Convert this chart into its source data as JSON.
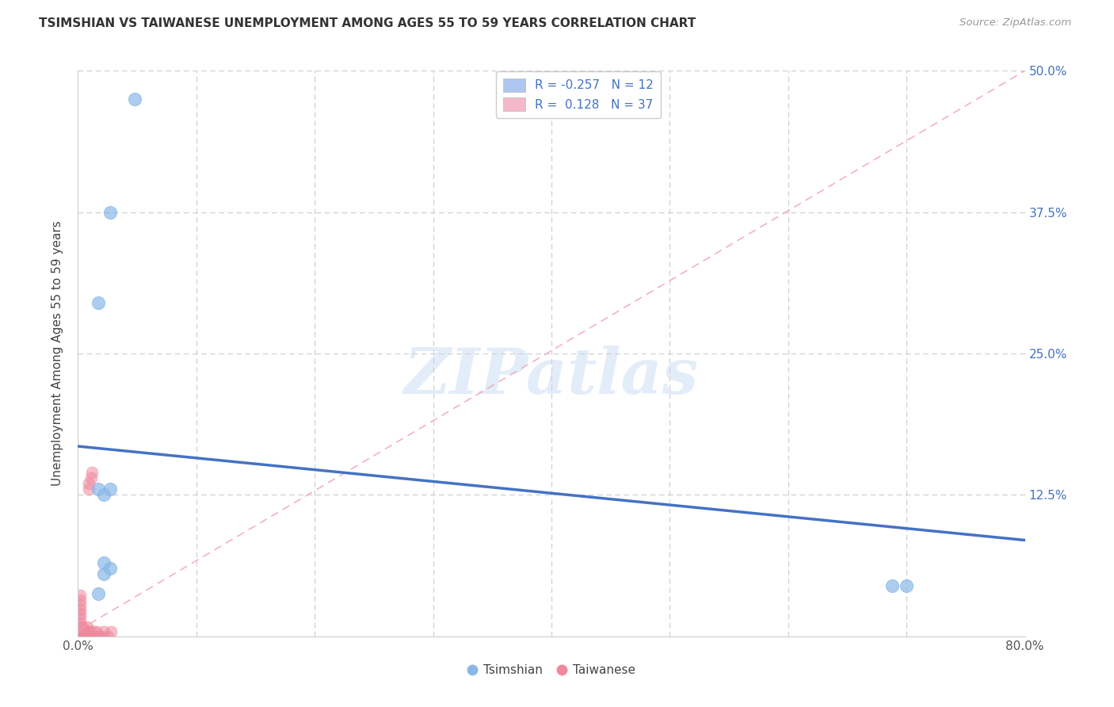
{
  "title": "TSIMSHIAN VS TAIWANESE UNEMPLOYMENT AMONG AGES 55 TO 59 YEARS CORRELATION CHART",
  "source": "Source: ZipAtlas.com",
  "ylabel": "Unemployment Among Ages 55 to 59 years",
  "xlim": [
    0.0,
    0.8
  ],
  "ylim": [
    0.0,
    0.5
  ],
  "ytick_positions": [
    0.0,
    0.125,
    0.25,
    0.375,
    0.5
  ],
  "right_ytick_labels": [
    "",
    "12.5%",
    "25.0%",
    "37.5%",
    "50.0%"
  ],
  "xtick_positions": [
    0.0,
    0.1,
    0.2,
    0.3,
    0.4,
    0.5,
    0.6,
    0.7,
    0.8
  ],
  "xtick_labels": [
    "0.0%",
    "",
    "",
    "",
    "",
    "",
    "",
    "",
    "80.0%"
  ],
  "tsimshian_color": "#89b8e8",
  "taiwanese_color": "#f0899e",
  "tsimshian_scatter": {
    "x": [
      0.048,
      0.027,
      0.017,
      0.027,
      0.017,
      0.022,
      0.022,
      0.688,
      0.7,
      0.027,
      0.017,
      0.022
    ],
    "y": [
      0.475,
      0.375,
      0.295,
      0.13,
      0.13,
      0.125,
      0.055,
      0.045,
      0.045,
      0.06,
      0.038,
      0.065
    ]
  },
  "taiwanese_scatter": {
    "x": [
      0.002,
      0.002,
      0.002,
      0.002,
      0.002,
      0.002,
      0.002,
      0.002,
      0.002,
      0.002,
      0.004,
      0.004,
      0.004,
      0.005,
      0.005,
      0.006,
      0.006,
      0.007,
      0.007,
      0.008,
      0.008,
      0.008,
      0.009,
      0.009,
      0.01,
      0.01,
      0.011,
      0.012,
      0.012,
      0.013,
      0.015,
      0.016,
      0.018,
      0.02,
      0.022,
      0.025,
      0.028
    ],
    "y": [
      0.0,
      0.004,
      0.008,
      0.012,
      0.016,
      0.02,
      0.024,
      0.028,
      0.032,
      0.036,
      0.0,
      0.004,
      0.008,
      0.0,
      0.004,
      0.0,
      0.004,
      0.0,
      0.004,
      0.0,
      0.004,
      0.008,
      0.13,
      0.135,
      0.0,
      0.005,
      0.14,
      0.145,
      0.0,
      0.004,
      0.0,
      0.004,
      0.0,
      0.0,
      0.004,
      0.0,
      0.004
    ]
  },
  "tsimshian_reg": {
    "x": [
      0.0,
      0.8
    ],
    "y": [
      0.168,
      0.085
    ]
  },
  "taiwanese_reg": {
    "x": [
      0.0,
      0.8
    ],
    "y": [
      0.005,
      0.5
    ]
  },
  "background_color": "#ffffff",
  "grid_color": "#cccccc",
  "watermark_text": "ZIPatlas",
  "scatter_size": 90
}
